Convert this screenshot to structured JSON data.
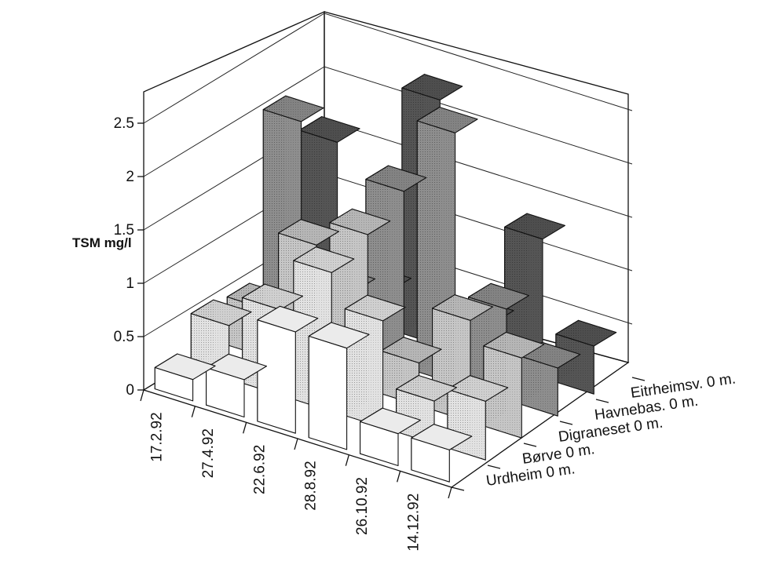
{
  "chart_data": {
    "type": "bar",
    "subtype": "3d-bar",
    "title": "",
    "ylabel": "TSM mg/l",
    "ylim": [
      0,
      2.5
    ],
    "yticks": [
      "0",
      "0.5",
      "1",
      "1.5",
      "2",
      "2.5"
    ],
    "categories": [
      "17.2.92",
      "27.4.92",
      "22.6.92",
      "28.8.92",
      "26.10.92",
      "14.12.92"
    ],
    "series": [
      {
        "name": "Urdheim 0 m.",
        "color": "#ffffff",
        "values": [
          0.2,
          0.35,
          0.95,
          0.95,
          0.3,
          0.3
        ]
      },
      {
        "name": "Børve 0 m.",
        "color": "#e2e2e2",
        "values": [
          0.5,
          0.8,
          1.3,
          1.0,
          0.4,
          0.55
        ]
      },
      {
        "name": "Digraneset 0 m.",
        "color": "#c6c6c6",
        "values": [
          0.45,
          1.2,
          1.45,
          0.4,
          0.95,
          0.75
        ]
      },
      {
        "name": "Havnebas. 0 m.",
        "color": "#8e8e8e",
        "values": [
          2.0,
          0.55,
          1.65,
          2.35,
          0.85,
          0.45
        ]
      },
      {
        "name": "Eitrheimsv. 0 m.",
        "color": "#555555",
        "values": [
          1.6,
          0.35,
          2.3,
          0.35,
          1.3,
          0.45
        ]
      }
    ],
    "grid": true,
    "legend": "series labels along depth axis (right)"
  }
}
